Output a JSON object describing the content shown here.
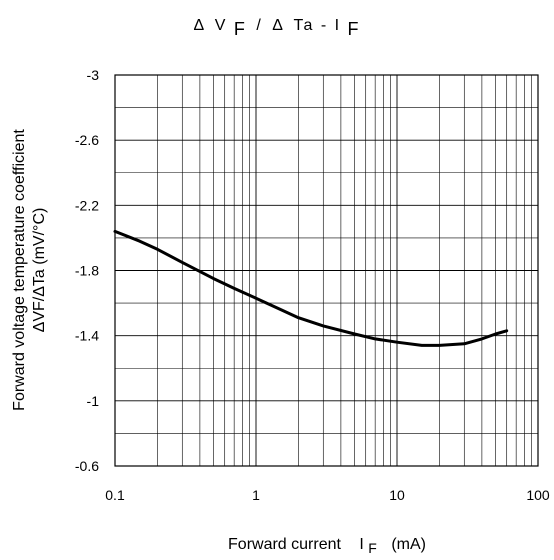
{
  "chart_data": {
    "type": "line",
    "title_parts": {
      "delta1": "Δ",
      "v": "V",
      "sub_f1": "F",
      "slash": "/",
      "delta2": "Δ",
      "ta": "Ta - I",
      "sub_f2": "F"
    },
    "xlabel_parts": {
      "main": "Forward current",
      "i": "I",
      "sub_f": "F",
      "unit": "(mA)"
    },
    "ylabel_line1": "Forward voltage temperature coefficient",
    "ylabel_line2": "ΔVF/ΔTa (mV/°C)",
    "x_scale": "log",
    "xlim": [
      0.1,
      100
    ],
    "ylim": [
      -0.6,
      -3
    ],
    "x_ticks": [
      {
        "value": 0.1,
        "label": "0.1"
      },
      {
        "value": 1,
        "label": "1"
      },
      {
        "value": 10,
        "label": "10"
      },
      {
        "value": 100,
        "label": "100"
      }
    ],
    "y_ticks": [
      {
        "value": -3,
        "label": "-3"
      },
      {
        "value": -2.6,
        "label": "-2.6"
      },
      {
        "value": -2.2,
        "label": "-2.2"
      },
      {
        "value": -1.8,
        "label": "-1.8"
      },
      {
        "value": -1.4,
        "label": "-1.4"
      },
      {
        "value": -1,
        "label": "-1"
      },
      {
        "value": -0.6,
        "label": "-0.6"
      }
    ],
    "y_minor_gridlines": [
      -2.8,
      -2.4,
      -2.0,
      -1.6,
      -1.2,
      -0.8
    ],
    "grid": true,
    "series": [
      {
        "x": [
          0.1,
          0.15,
          0.2,
          0.3,
          0.5,
          0.7,
          1,
          1.5,
          2,
          3,
          5,
          7,
          10,
          15,
          20,
          30,
          40,
          50,
          60
        ],
        "y": [
          -2.04,
          -1.98,
          -1.93,
          -1.85,
          -1.75,
          -1.69,
          -1.63,
          -1.56,
          -1.51,
          -1.46,
          -1.41,
          -1.38,
          -1.36,
          -1.34,
          -1.34,
          -1.35,
          -1.38,
          -1.41,
          -1.43
        ]
      }
    ]
  }
}
